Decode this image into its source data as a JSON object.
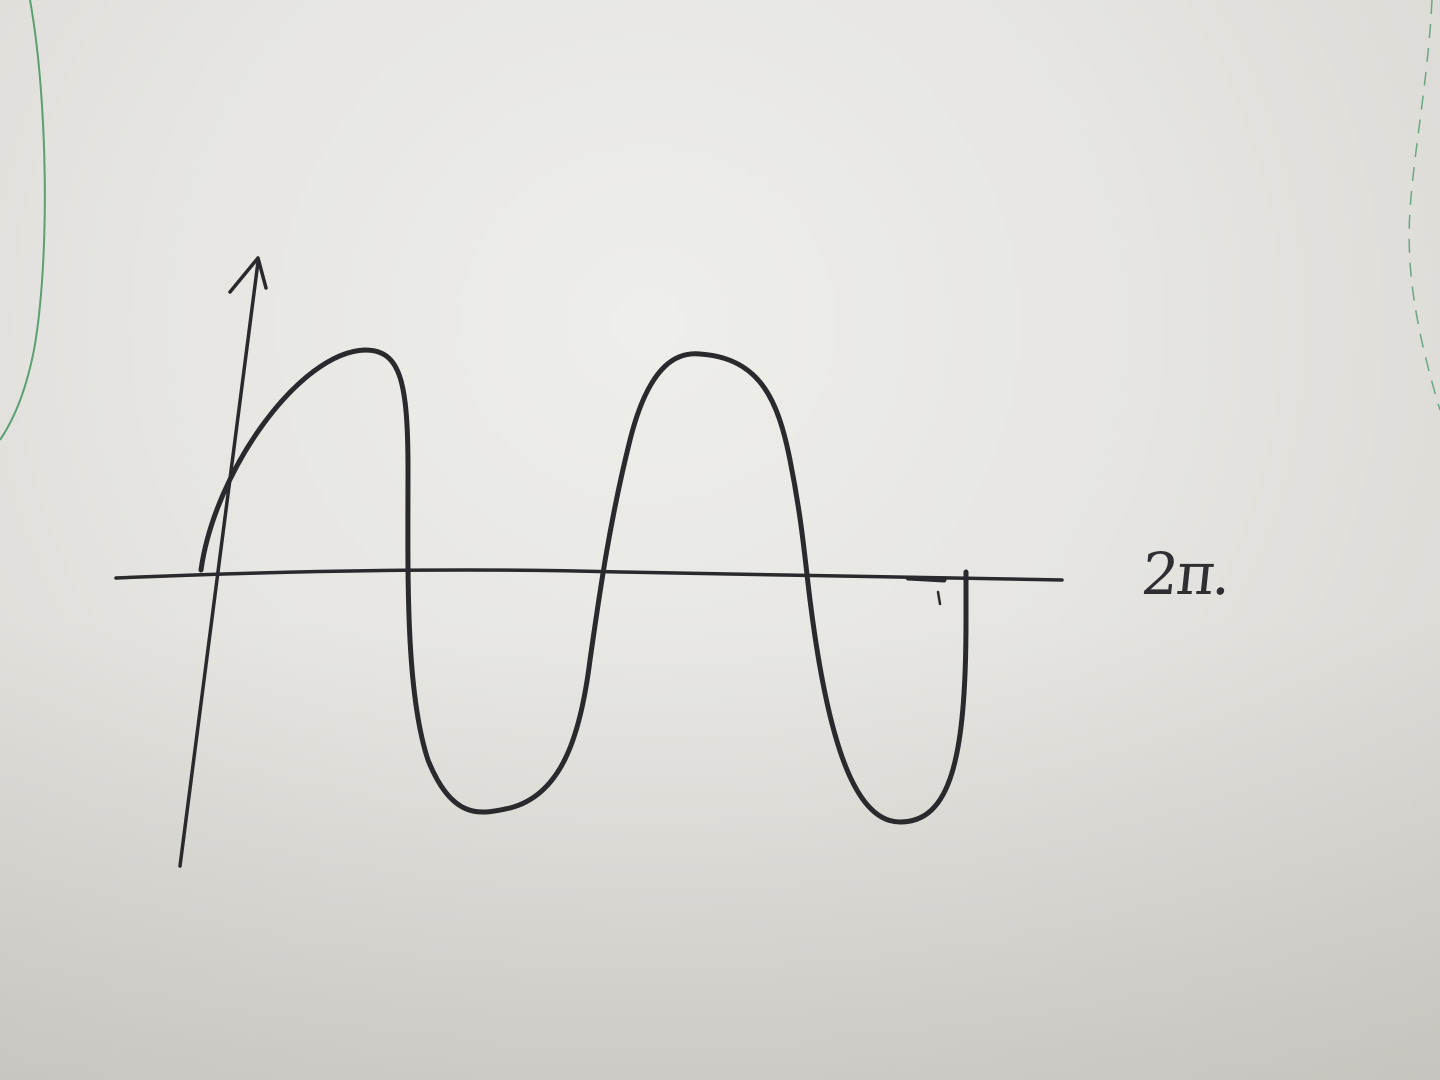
{
  "photo": {
    "period_label": "2π."
  }
}
